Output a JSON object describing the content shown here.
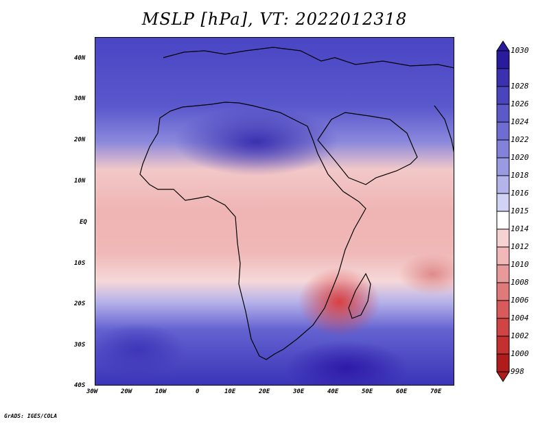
{
  "title": "MSLP [hPa], VT: 2022012318",
  "footer": "GrADS: IGES/COLA",
  "axes": {
    "y_ticks": [
      "40N",
      "30N",
      "20N",
      "10N",
      "EQ",
      "10S",
      "20S",
      "30S",
      "40S"
    ],
    "x_ticks": [
      "30W",
      "20W",
      "10W",
      "0",
      "10E",
      "20E",
      "30E",
      "40E",
      "50E",
      "60E",
      "70E"
    ]
  },
  "colorbar": {
    "levels": [
      "1030",
      "1028",
      "1026",
      "1024",
      "1022",
      "1020",
      "1018",
      "1016",
      "1015",
      "1014",
      "1012",
      "1010",
      "1008",
      "1006",
      "1004",
      "1002",
      "1000",
      "998"
    ],
    "colors": [
      "#2a1a9e",
      "#3a30b0",
      "#4b45bd",
      "#5c5ac8",
      "#6e6ed2",
      "#8282da",
      "#9a9ae2",
      "#b4b4ea",
      "#d2d2f4",
      "#ffffff",
      "#f6d2d2",
      "#f0b8b8",
      "#e89a9a",
      "#e07a7a",
      "#d85a5a",
      "#d04444",
      "#c43030",
      "#b01c1c"
    ]
  }
}
